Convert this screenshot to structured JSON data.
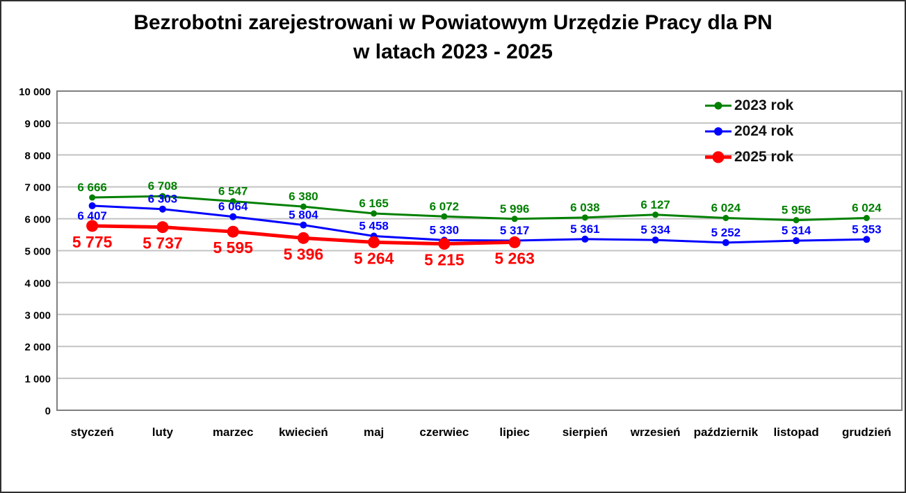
{
  "page": {
    "title_line1": "Bezrobotni zarejestrowani w Powiatowym Urzędzie Pracy dla PN",
    "title_line2": "w latach 2023 - 2025"
  },
  "chart_data": {
    "type": "line",
    "title": "Bezrobotni zarejestrowani w Powiatowym Urzędzie Pracy dla PN w latach 2023 - 2025",
    "categories": [
      "styczeń",
      "luty",
      "marzec",
      "kwiecień",
      "maj",
      "czerwiec",
      "lipiec",
      "sierpień",
      "wrzesień",
      "październik",
      "listopad",
      "grudzień"
    ],
    "series": [
      {
        "name": "2023 rok",
        "color": "#008000",
        "line_width": 3,
        "marker_radius": 4.5,
        "label_font": 17,
        "label_position": "above",
        "values": [
          6666,
          6708,
          6547,
          6380,
          6165,
          6072,
          5996,
          6038,
          6127,
          6024,
          5956,
          6024
        ],
        "labels": [
          "6 666",
          "6 708",
          "6 547",
          "6 380",
          "6 165",
          "6 072",
          "5 996",
          "6 038",
          "6 127",
          "6 024",
          "5 956",
          "6 024"
        ]
      },
      {
        "name": "2024 rok",
        "color": "#0000ff",
        "line_width": 3,
        "marker_radius": 5,
        "label_font": 17,
        "label_position": "above",
        "label_position_overrides": {
          "0": "below"
        },
        "values": [
          6407,
          6303,
          6064,
          5804,
          5458,
          5330,
          5317,
          5361,
          5334,
          5252,
          5314,
          5353
        ],
        "labels": [
          "6 407",
          "6 303",
          "6 064",
          "5 804",
          "5 458",
          "5 330",
          "5 317",
          "5 361",
          "5 334",
          "5 252",
          "5 314",
          "5 353"
        ]
      },
      {
        "name": "2025 rok",
        "color": "#ff0000",
        "line_width": 5,
        "marker_radius": 8.5,
        "label_font": 23,
        "label_position": "below",
        "values": [
          5775,
          5737,
          5595,
          5396,
          5264,
          5215,
          5263
        ],
        "labels": [
          "5 775",
          "5 737",
          "5 595",
          "5 396",
          "5 264",
          "5 215",
          "5 263"
        ]
      }
    ],
    "ylim": [
      0,
      10000
    ],
    "ytick_step": 1000,
    "ytick_labels": [
      "0",
      "1 000",
      "2 000",
      "3 000",
      "4 000",
      "5 000",
      "6 000",
      "7 000",
      "8 000",
      "9 000",
      "10 000"
    ],
    "grid": true,
    "legend_position": "top-right",
    "axis_color": "#7f7f7f",
    "gridline_color": "#c3c3c3",
    "text_color": "#000000"
  }
}
